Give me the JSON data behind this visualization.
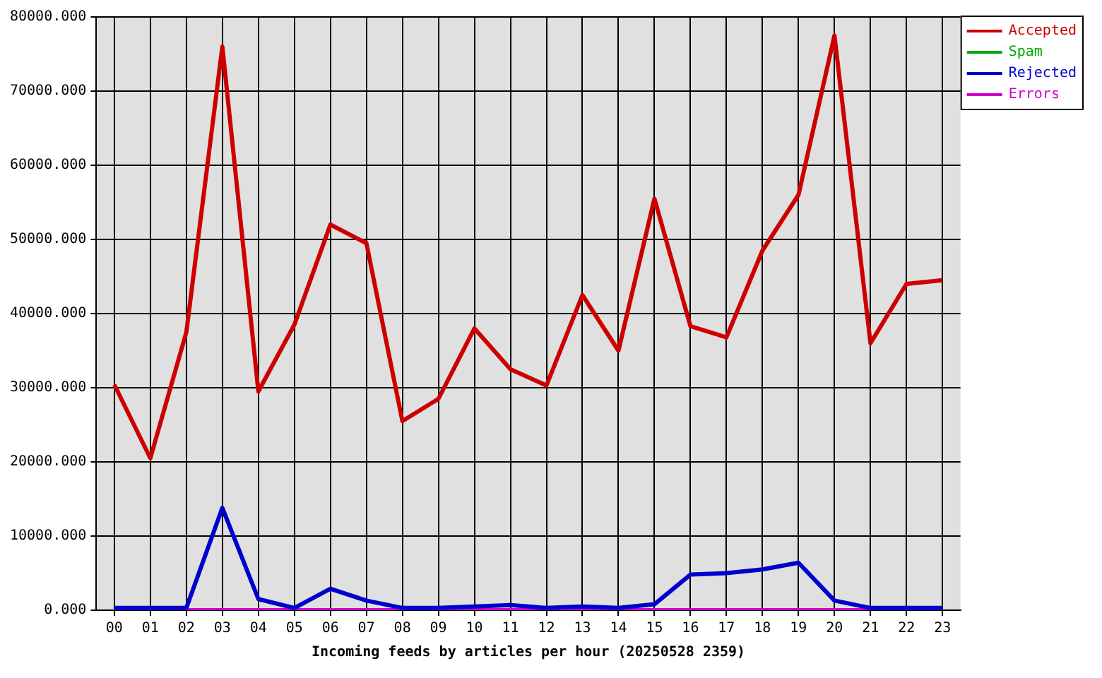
{
  "chart_data": {
    "type": "line",
    "xlabel": "Incoming feeds by articles per hour (20250528 2359)",
    "categories": [
      "00",
      "01",
      "02",
      "03",
      "04",
      "05",
      "06",
      "07",
      "08",
      "09",
      "10",
      "11",
      "12",
      "13",
      "14",
      "15",
      "16",
      "17",
      "18",
      "19",
      "20",
      "21",
      "22",
      "23"
    ],
    "series": [
      {
        "name": "Accepted",
        "color": "#cc0000",
        "values": [
          30400,
          20500,
          37500,
          76000,
          29500,
          38500,
          52000,
          49500,
          25500,
          28500,
          38000,
          32500,
          30300,
          42500,
          35000,
          55500,
          38300,
          36800,
          48500,
          56000,
          77500,
          36000,
          44000,
          44500
        ]
      },
      {
        "name": "Spam",
        "color": "#00aa00",
        "values": [
          null,
          null,
          null,
          null,
          null,
          null,
          null,
          null,
          null,
          null,
          null,
          null,
          null,
          null,
          null,
          null,
          null,
          null,
          null,
          null,
          null,
          null,
          null,
          null
        ]
      },
      {
        "name": "Rejected",
        "color": "#0000cc",
        "values": [
          300,
          300,
          300,
          13800,
          1500,
          300,
          2900,
          1300,
          300,
          300,
          500,
          700,
          300,
          500,
          300,
          800,
          4800,
          5000,
          5500,
          6400,
          1300,
          300,
          300,
          300
        ]
      },
      {
        "name": "Errors",
        "color": "#cc00cc",
        "values": [
          0,
          0,
          0,
          0,
          0,
          0,
          0,
          0,
          0,
          0,
          0,
          0,
          0,
          0,
          0,
          0,
          0,
          0,
          0,
          0,
          0,
          0,
          0,
          0
        ]
      }
    ],
    "ylim": [
      0,
      80000
    ],
    "yticks": [
      {
        "value": 0,
        "label": "0.000"
      },
      {
        "value": 10000,
        "label": "10000.000"
      },
      {
        "value": 20000,
        "label": "20000.000"
      },
      {
        "value": 30000,
        "label": "30000.000"
      },
      {
        "value": 40000,
        "label": "40000.000"
      },
      {
        "value": 50000,
        "label": "50000.000"
      },
      {
        "value": 60000,
        "label": "60000.000"
      },
      {
        "value": 70000,
        "label": "70000.000"
      },
      {
        "value": 80000,
        "label": "80000.000"
      }
    ],
    "grid": true,
    "legend": "top right",
    "marker": "none",
    "line_style": "solid"
  }
}
